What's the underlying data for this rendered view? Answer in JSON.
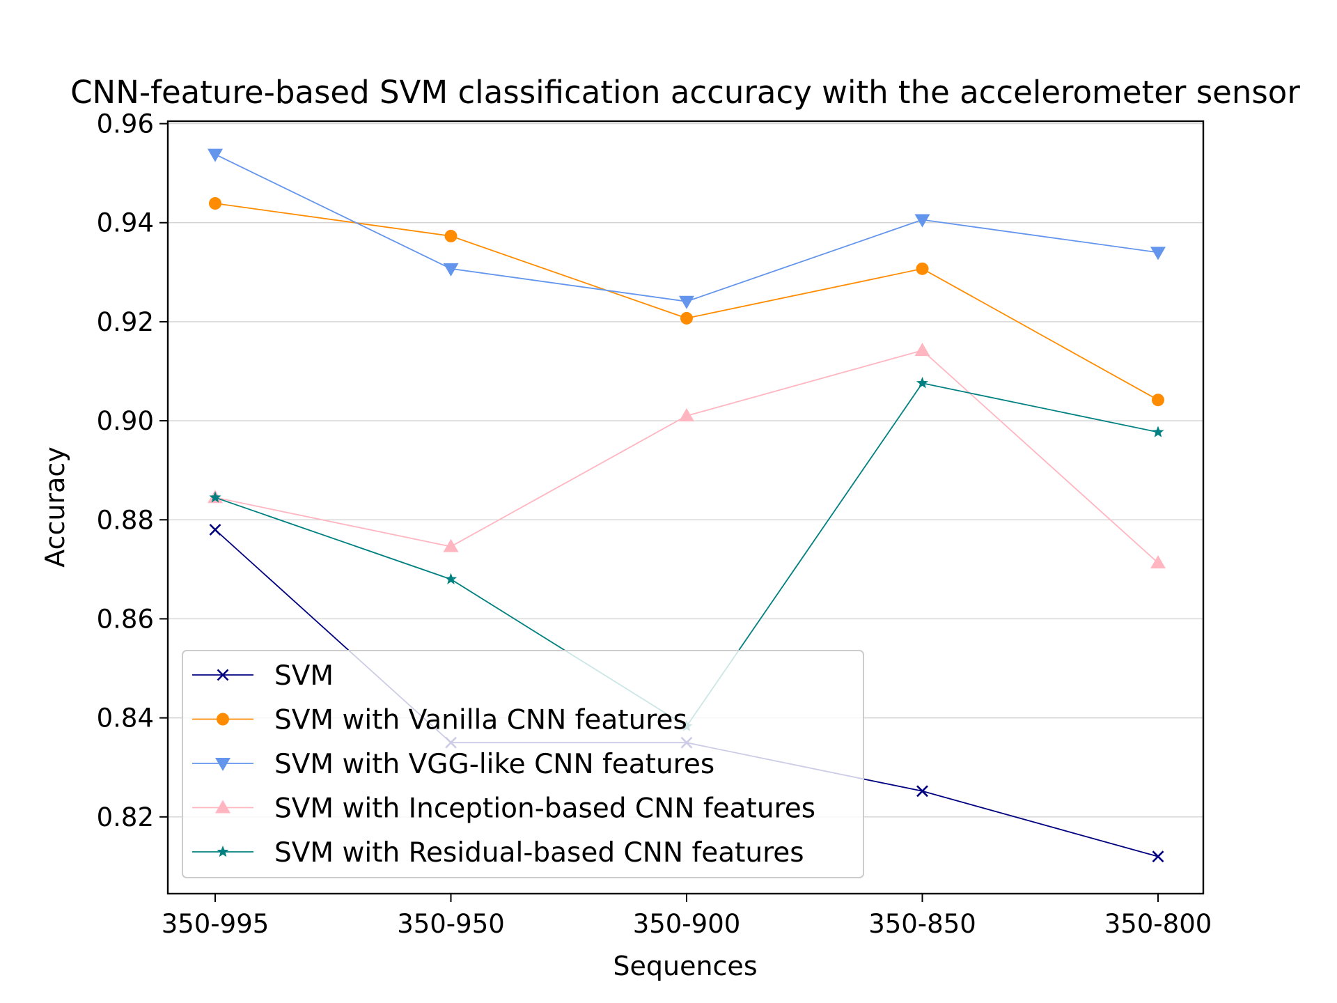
{
  "chart_data": {
    "type": "line",
    "title": "CNN-feature-based SVM classification accuracy with the accelerometer sensor",
    "xlabel": "Sequences",
    "ylabel": "Accuracy",
    "categories": [
      "350-995",
      "350-950",
      "350-900",
      "350-850",
      "350-800"
    ],
    "ylim": [
      0.8045,
      0.9605
    ],
    "yticks": [
      "0.82",
      "0.84",
      "0.86",
      "0.88",
      "0.90",
      "0.92",
      "0.94",
      "0.96"
    ],
    "grid": "horizontal",
    "legend_position": "lower-left",
    "series": [
      {
        "name": "SVM",
        "color": "#000080",
        "marker": "x",
        "values": [
          0.878,
          0.835,
          0.835,
          0.8252,
          0.812
        ]
      },
      {
        "name": "SVM with Vanilla CNN features",
        "color": "#ff8c00",
        "marker": "circle",
        "values": [
          0.9439,
          0.9373,
          0.9207,
          0.9307,
          0.9042
        ]
      },
      {
        "name": "SVM with VGG-like CNN features",
        "color": "#6495ed",
        "marker": "triangle-down",
        "values": [
          0.9538,
          0.9307,
          0.9241,
          0.9406,
          0.934
        ]
      },
      {
        "name": "SVM with Inception-based CNN features",
        "color": "#ffb6c1",
        "marker": "triangle-up",
        "values": [
          0.8845,
          0.8746,
          0.901,
          0.9142,
          0.8713
        ]
      },
      {
        "name": "SVM with Residual-based CNN features",
        "color": "#008080",
        "marker": "star",
        "values": [
          0.8845,
          0.868,
          0.8383,
          0.9076,
          0.8977
        ]
      }
    ]
  }
}
